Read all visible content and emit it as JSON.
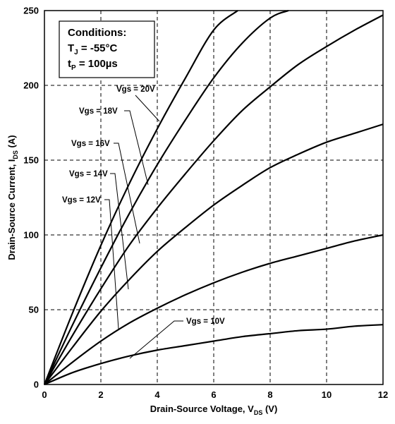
{
  "chart_data": {
    "type": "line",
    "xlabel": "Drain-Source Voltage, V",
    "xlabel_sub": "DS",
    "xlabel_unit": " (V)",
    "ylabel": "Drain-Source Current, I",
    "ylabel_sub": "DS",
    "ylabel_unit": " (A)",
    "xlim": [
      0,
      12
    ],
    "ylim": [
      0,
      250
    ],
    "xticks": [
      0,
      2,
      4,
      6,
      8,
      10,
      12
    ],
    "yticks": [
      0,
      50,
      100,
      150,
      200,
      250
    ],
    "grid": true,
    "conditions": {
      "title": "Conditions:",
      "tj_label": "T",
      "tj_sub": "J",
      "tj_value": " = -55°C",
      "tp_label": "t",
      "tp_sub": "P",
      "tp_value": " = 100µs"
    },
    "series": [
      {
        "name": "Vgs = 20V",
        "x": [
          0,
          1,
          2,
          3,
          4,
          5,
          6,
          6.85
        ],
        "y": [
          0,
          48,
          93,
          134,
          171,
          205,
          237,
          250
        ]
      },
      {
        "name": "Vgs = 18V",
        "x": [
          0,
          1,
          2,
          3,
          4,
          5,
          6,
          7,
          8,
          8.65
        ],
        "y": [
          0,
          40,
          78,
          114,
          147,
          177,
          205,
          228,
          245,
          250
        ]
      },
      {
        "name": "Vgs = 16V",
        "x": [
          0,
          1,
          2,
          3,
          4,
          5,
          6,
          7,
          8,
          9,
          10,
          11,
          12
        ],
        "y": [
          0,
          33,
          64,
          93,
          118,
          141,
          163,
          183,
          199,
          214,
          226,
          237,
          247
        ]
      },
      {
        "name": "Vgs = 14V",
        "x": [
          0,
          1,
          2,
          3,
          4,
          5,
          6,
          7,
          8,
          9,
          10,
          11,
          12
        ],
        "y": [
          0,
          25,
          49,
          70,
          89,
          105,
          120,
          133,
          145,
          154,
          162,
          168,
          174
        ]
      },
      {
        "name": "Vgs = 12V",
        "x": [
          0,
          1,
          2,
          3,
          4,
          5,
          6,
          7,
          8,
          9,
          10,
          11,
          12
        ],
        "y": [
          0,
          15,
          29,
          41,
          51,
          60,
          68,
          75,
          81,
          86,
          91,
          96,
          100
        ]
      },
      {
        "name": "Vgs = 10V",
        "x": [
          0,
          1,
          2,
          3,
          4,
          5,
          6,
          7,
          8,
          9,
          10,
          11,
          12
        ],
        "y": [
          0,
          8,
          14,
          19,
          23,
          26,
          29,
          32,
          34,
          36,
          37,
          39,
          40
        ]
      }
    ]
  }
}
